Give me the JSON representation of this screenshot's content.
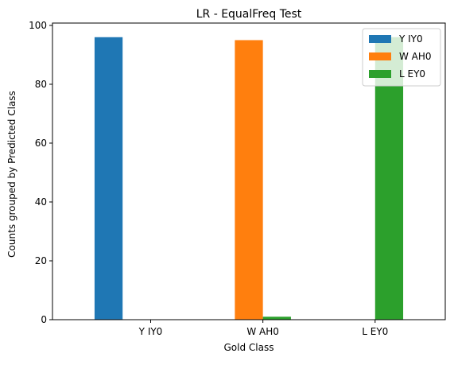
{
  "chart_data": {
    "type": "bar",
    "title": "LR - EqualFreq Test",
    "xlabel": "Gold Class",
    "ylabel": "Counts grouped by Predicted Class",
    "categories": [
      "Y IY0",
      "W AH0",
      "L EY0"
    ],
    "series": [
      {
        "name": "Y IY0",
        "values": [
          96,
          0,
          0
        ],
        "color": "#1f77b4"
      },
      {
        "name": "W AH0",
        "values": [
          0,
          95,
          0
        ],
        "color": "#ff7f0e"
      },
      {
        "name": "L EY0",
        "values": [
          0,
          1,
          96
        ],
        "color": "#2ca02c"
      }
    ],
    "ylim": [
      0,
      100.8
    ],
    "yticks": [
      0,
      20,
      40,
      60,
      80,
      100
    ],
    "grid": false,
    "legend_position": "top-right"
  }
}
